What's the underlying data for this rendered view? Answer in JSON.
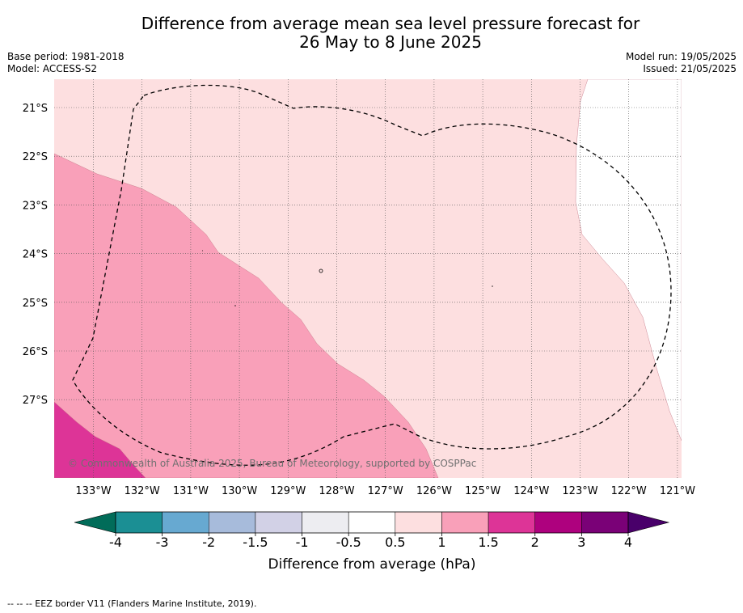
{
  "title_line1": "Difference from average mean sea level pressure forecast for",
  "title_line2": "26 May to 8 June 2025",
  "base_period": "Base period: 1981-2018",
  "model": "Model: ACCESS-S2",
  "model_run": "Model run: 19/05/2025",
  "issued": "Issued: 21/05/2025",
  "copyright": "© Commonwealth of Australia 2025, Bureau of Meteorology, supported by COSPPac",
  "lat_labels": [
    "21°S",
    "22°S",
    "23°S",
    "24°S",
    "25°S",
    "26°S",
    "27°S"
  ],
  "lon_labels": [
    "133°W",
    "132°W",
    "131°W",
    "130°W",
    "129°W",
    "128°W",
    "127°W",
    "126°W",
    "125°W",
    "124°W",
    "123°W",
    "122°W",
    "121°W"
  ],
  "colorbar": {
    "label": "Difference from average (hPa)",
    "ticks": [
      "-4",
      "-3",
      "-2",
      "-1.5",
      "-1",
      "-0.5",
      "0.5",
      "1",
      "1.5",
      "2",
      "3",
      "4"
    ],
    "colors": [
      "#1b8f94",
      "#67a9d1",
      "#a7bbdb",
      "#d2d1e6",
      "#ededf1",
      "#ffffff",
      "#fddfe0",
      "#f9a0b9",
      "#dd3497",
      "#ae017e",
      "#7a0177"
    ],
    "under_color": "#016c59",
    "over_color": "#49006a"
  },
  "fill_colors": {
    "light": "#fddfe0",
    "medium": "#f9a0b9",
    "dark": "#dd3497",
    "neutral": "#ffffff"
  },
  "legend_note": "--  --  -- EEZ border V11 (Flanders Marine Institute, 2019)."
}
